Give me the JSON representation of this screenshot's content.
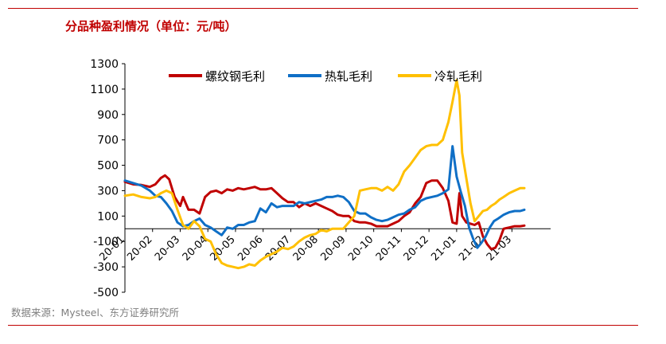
{
  "header": {
    "title": "分品种盈利情况（单位：元/吨）"
  },
  "footer": {
    "source": "数据来源：Mysteel、东方证券研究所"
  },
  "colors": {
    "accent": "#c00000",
    "rebar": "#c00000",
    "hot_rolled": "#0f6fc6",
    "cold_rolled": "#ffc000"
  },
  "chart_data": {
    "type": "line",
    "title": "分品种盈利情况（单位：元/吨）",
    "xlabel": "",
    "ylabel": "",
    "ylim": [
      -500,
      1300
    ],
    "yticks": [
      -500,
      -300,
      -100,
      100,
      300,
      500,
      700,
      900,
      1100,
      1300
    ],
    "yticks_labels": [
      "-500",
      "-300",
      "-100",
      "100",
      "300",
      "500",
      "700",
      "900",
      "1100",
      "1300"
    ],
    "xlim": [
      0,
      15.4
    ],
    "xticks": [
      0,
      1,
      2,
      3,
      4,
      5,
      6,
      7,
      8,
      9,
      10,
      11,
      12,
      13,
      14
    ],
    "xtick_labels": [
      "20-01",
      "20-02",
      "20-03",
      "20-04",
      "20-05",
      "20-06",
      "20-07",
      "20-08",
      "20-09",
      "20-10",
      "20-11",
      "20-12",
      "21-01",
      "21-02",
      "21-03"
    ],
    "legend_position": "top",
    "grid": false,
    "series": [
      {
        "name": "螺纹钢毛利",
        "color": "#c00000",
        "x": [
          0.0,
          0.3,
          0.6,
          0.9,
          1.1,
          1.3,
          1.45,
          1.6,
          1.8,
          2.0,
          2.1,
          2.3,
          2.5,
          2.7,
          2.9,
          3.1,
          3.3,
          3.5,
          3.7,
          3.9,
          4.1,
          4.3,
          4.5,
          4.7,
          4.9,
          5.1,
          5.3,
          5.5,
          5.7,
          5.9,
          6.1,
          6.3,
          6.5,
          6.7,
          6.9,
          7.1,
          7.3,
          7.5,
          7.7,
          7.9,
          8.1,
          8.3,
          8.5,
          8.7,
          8.9,
          9.1,
          9.3,
          9.5,
          9.7,
          9.9,
          10.1,
          10.3,
          10.5,
          10.7,
          10.9,
          11.1,
          11.3,
          11.5,
          11.7,
          11.85,
          12.0,
          12.1,
          12.2,
          12.35,
          12.5,
          12.65,
          12.8,
          12.95,
          13.1,
          13.25,
          13.4,
          13.55,
          13.7,
          13.9,
          14.1,
          14.3,
          14.45
        ],
        "values": [
          370,
          350,
          345,
          330,
          350,
          400,
          420,
          390,
          250,
          180,
          250,
          150,
          150,
          120,
          250,
          290,
          300,
          280,
          310,
          300,
          320,
          310,
          320,
          330,
          310,
          310,
          320,
          280,
          240,
          210,
          210,
          170,
          200,
          180,
          200,
          180,
          160,
          140,
          110,
          100,
          100,
          60,
          50,
          50,
          40,
          20,
          20,
          20,
          40,
          60,
          100,
          130,
          200,
          250,
          360,
          380,
          380,
          320,
          220,
          50,
          40,
          280,
          100,
          50,
          40,
          30,
          50,
          -60,
          -120,
          -160,
          -150,
          -90,
          0,
          10,
          20,
          20,
          25
        ]
      },
      {
        "name": "热轧毛利",
        "color": "#0f6fc6",
        "x": [
          0.0,
          0.3,
          0.6,
          0.9,
          1.1,
          1.3,
          1.5,
          1.7,
          1.9,
          2.1,
          2.3,
          2.5,
          2.7,
          2.9,
          3.1,
          3.3,
          3.5,
          3.7,
          3.9,
          4.1,
          4.3,
          4.5,
          4.7,
          4.9,
          5.1,
          5.3,
          5.5,
          5.7,
          5.9,
          6.1,
          6.3,
          6.5,
          6.7,
          6.9,
          7.1,
          7.3,
          7.5,
          7.7,
          7.9,
          8.1,
          8.3,
          8.5,
          8.7,
          8.9,
          9.1,
          9.3,
          9.5,
          9.7,
          9.9,
          10.1,
          10.3,
          10.5,
          10.7,
          10.9,
          11.1,
          11.3,
          11.5,
          11.7,
          11.85,
          12.0,
          12.15,
          12.3,
          12.45,
          12.6,
          12.75,
          12.9,
          13.05,
          13.2,
          13.35,
          13.5,
          13.7,
          13.9,
          14.1,
          14.3,
          14.45
        ],
        "values": [
          380,
          360,
          340,
          300,
          260,
          250,
          200,
          140,
          50,
          20,
          30,
          60,
          80,
          30,
          10,
          -20,
          -50,
          10,
          0,
          30,
          30,
          50,
          60,
          160,
          130,
          200,
          170,
          180,
          180,
          180,
          210,
          200,
          210,
          220,
          230,
          250,
          250,
          260,
          250,
          210,
          140,
          120,
          120,
          90,
          70,
          60,
          70,
          90,
          110,
          120,
          150,
          170,
          220,
          240,
          250,
          260,
          280,
          310,
          650,
          410,
          290,
          180,
          10,
          -80,
          -150,
          -110,
          -60,
          10,
          60,
          80,
          110,
          130,
          140,
          140,
          150
        ]
      },
      {
        "name": "冷轧毛利",
        "color": "#ffc000",
        "x": [
          0.0,
          0.3,
          0.6,
          0.9,
          1.1,
          1.3,
          1.5,
          1.7,
          1.9,
          2.1,
          2.3,
          2.5,
          2.7,
          2.9,
          3.1,
          3.3,
          3.5,
          3.7,
          3.9,
          4.1,
          4.3,
          4.5,
          4.7,
          4.9,
          5.1,
          5.3,
          5.5,
          5.7,
          5.9,
          6.1,
          6.3,
          6.5,
          6.7,
          6.9,
          7.1,
          7.3,
          7.5,
          7.7,
          7.9,
          8.1,
          8.3,
          8.5,
          8.7,
          8.9,
          9.1,
          9.3,
          9.5,
          9.7,
          9.9,
          10.1,
          10.3,
          10.5,
          10.7,
          10.9,
          11.1,
          11.3,
          11.5,
          11.7,
          11.85,
          12.0,
          12.1,
          12.2,
          12.35,
          12.5,
          12.65,
          12.8,
          12.95,
          13.1,
          13.25,
          13.4,
          13.55,
          13.7,
          13.9,
          14.1,
          14.3,
          14.45
        ],
        "values": [
          260,
          270,
          250,
          240,
          250,
          280,
          300,
          280,
          150,
          30,
          0,
          60,
          20,
          -80,
          -100,
          -200,
          -270,
          -290,
          -300,
          -310,
          -300,
          -280,
          -290,
          -250,
          -220,
          -200,
          -180,
          -150,
          -160,
          -140,
          -100,
          -70,
          -50,
          -40,
          -10,
          -20,
          0,
          0,
          0,
          50,
          100,
          300,
          310,
          320,
          320,
          300,
          330,
          300,
          350,
          450,
          500,
          560,
          620,
          650,
          660,
          660,
          700,
          840,
          1000,
          1170,
          1050,
          600,
          400,
          200,
          60,
          100,
          140,
          150,
          180,
          200,
          230,
          250,
          280,
          300,
          320,
          320
        ]
      }
    ]
  }
}
